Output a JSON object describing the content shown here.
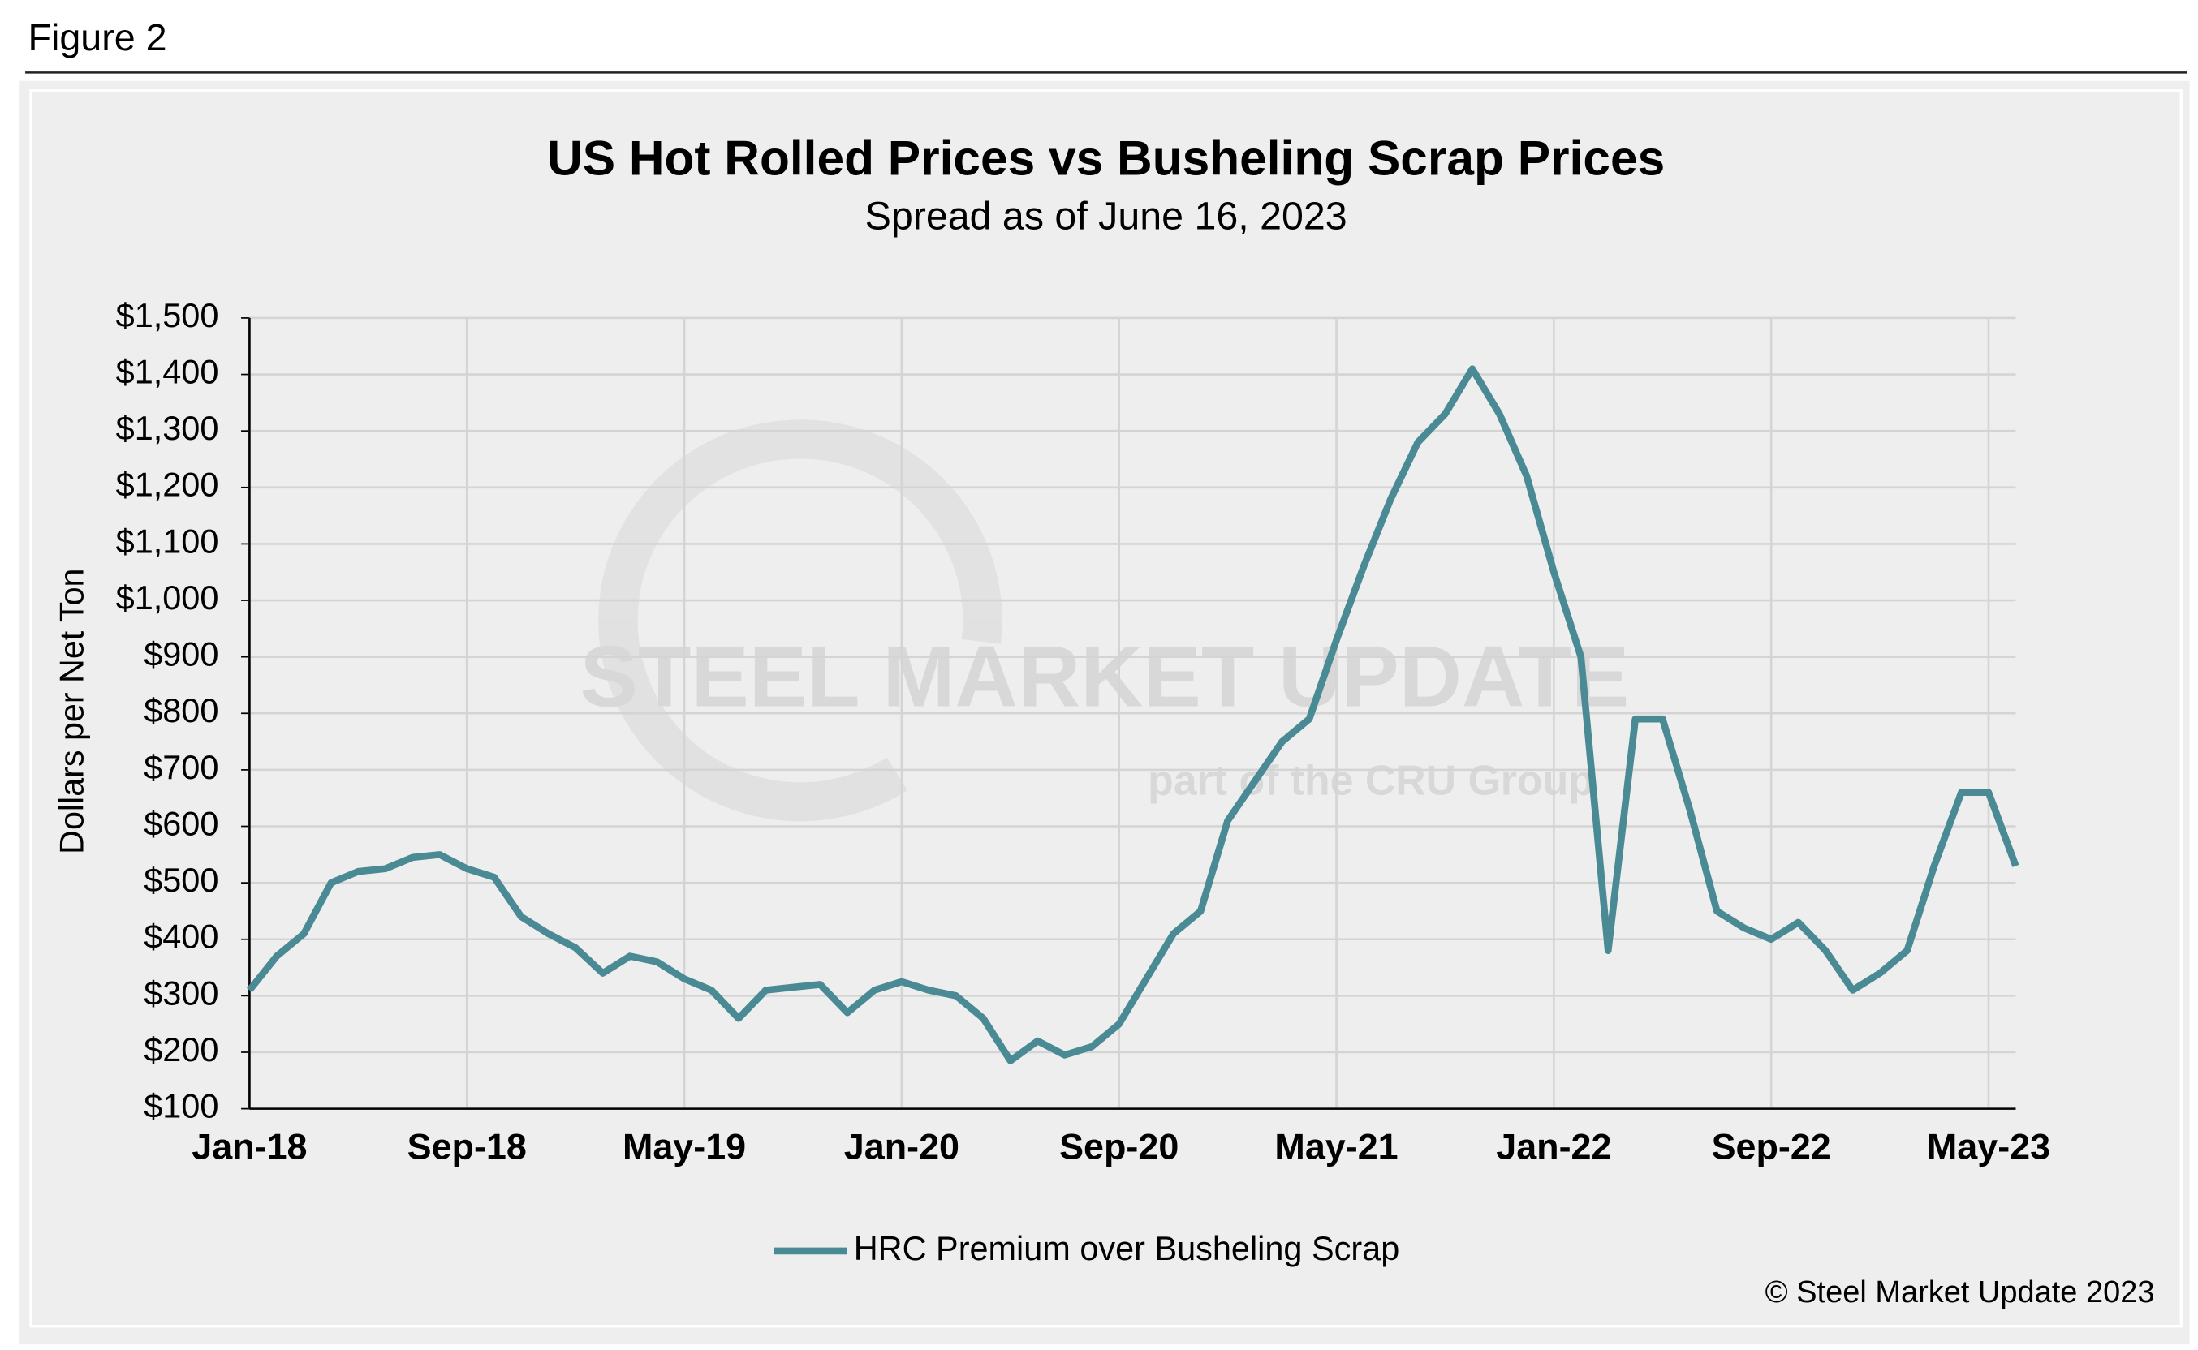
{
  "figure_label": "Figure 2",
  "chart_data": {
    "type": "line",
    "title": "US Hot Rolled Prices vs Busheling Scrap Prices",
    "subtitle": "Spread as of June 16, 2023",
    "y_label": "Dollars per Net Ton",
    "watermark": [
      "STEEL MARKET UPDATE",
      "part of the CRU Group"
    ],
    "source": "© Steel Market Update 2023",
    "x": [
      "Jan-18",
      "Feb-18",
      "Mar-18",
      "Apr-18",
      "May-18",
      "Jun-18",
      "Jul-18",
      "Aug-18",
      "Sep-18",
      "Oct-18",
      "Nov-18",
      "Dec-18",
      "Jan-19",
      "Feb-19",
      "Mar-19",
      "Apr-19",
      "May-19",
      "Jun-19",
      "Jul-19",
      "Aug-19",
      "Sep-19",
      "Oct-19",
      "Nov-19",
      "Dec-19",
      "Jan-20",
      "Feb-20",
      "Mar-20",
      "Apr-20",
      "May-20",
      "Jun-20",
      "Jul-20",
      "Aug-20",
      "Sep-20",
      "Oct-20",
      "Nov-20",
      "Dec-20",
      "Jan-21",
      "Feb-21",
      "Mar-21",
      "Apr-21",
      "May-21",
      "Jun-21",
      "Jul-21",
      "Aug-21",
      "Sep-21",
      "Oct-21",
      "Nov-21",
      "Dec-21",
      "Jan-22",
      "Feb-22",
      "Mar-22",
      "Apr-22",
      "May-22",
      "Jun-22",
      "Jul-22",
      "Aug-22",
      "Sep-22",
      "Oct-22",
      "Nov-22",
      "Dec-22",
      "Jan-23",
      "Feb-23",
      "Mar-23",
      "Apr-23",
      "May-23",
      "Jun-23"
    ],
    "series": [
      {
        "name": "HRC Premium over Busheling Scrap",
        "color": "#4a8a94",
        "values": [
          310,
          370,
          410,
          500,
          520,
          525,
          545,
          550,
          525,
          510,
          440,
          410,
          385,
          340,
          370,
          360,
          330,
          310,
          260,
          310,
          315,
          320,
          270,
          310,
          325,
          310,
          300,
          260,
          185,
          220,
          195,
          210,
          250,
          330,
          410,
          450,
          610,
          680,
          750,
          790,
          930,
          1060,
          1180,
          1280,
          1330,
          1410,
          1330,
          1220,
          1050,
          900,
          380,
          790,
          790,
          630,
          450,
          420,
          400,
          430,
          380,
          310,
          340,
          380,
          530,
          660,
          660,
          530
        ]
      }
    ],
    "xticks": [
      "Jan-18",
      "Sep-18",
      "May-19",
      "Jan-20",
      "Sep-20",
      "May-21",
      "Jan-22",
      "Sep-22",
      "May-23"
    ],
    "ylim": [
      100,
      1500
    ],
    "yticks": [
      {
        "value": 100,
        "label": "$100"
      },
      {
        "value": 200,
        "label": "$200"
      },
      {
        "value": 300,
        "label": "$300"
      },
      {
        "value": 400,
        "label": "$400"
      },
      {
        "value": 500,
        "label": "$500"
      },
      {
        "value": 600,
        "label": "$600"
      },
      {
        "value": 700,
        "label": "$700"
      },
      {
        "value": 800,
        "label": "$800"
      },
      {
        "value": 900,
        "label": "$900"
      },
      {
        "value": 1000,
        "label": "$1,000"
      },
      {
        "value": 1100,
        "label": "$1,100"
      },
      {
        "value": 1200,
        "label": "$1,200"
      },
      {
        "value": 1300,
        "label": "$1,300"
      },
      {
        "value": 1400,
        "label": "$1,400"
      },
      {
        "value": 1500,
        "label": "$1,500"
      }
    ],
    "grid": true
  }
}
